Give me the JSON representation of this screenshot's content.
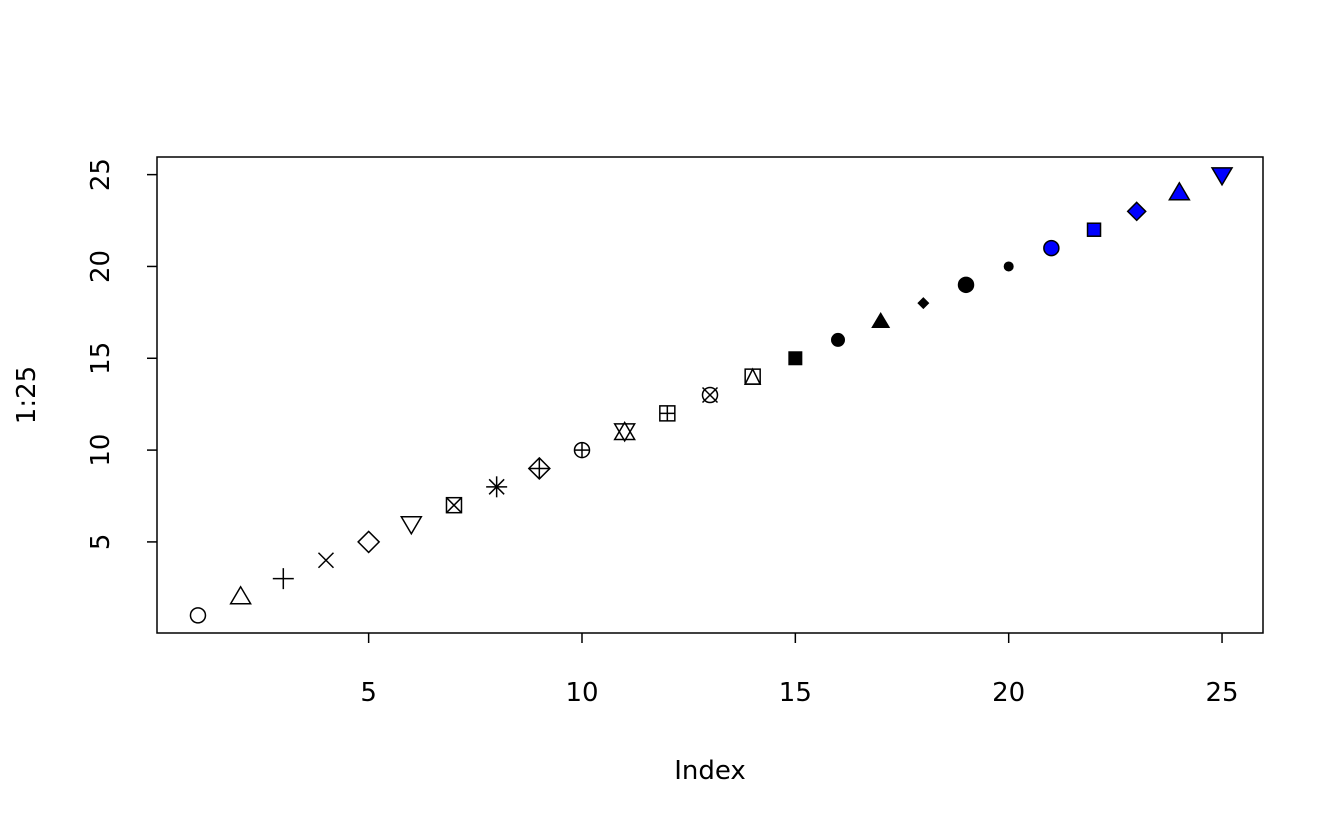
{
  "chart_data": {
    "type": "scatter",
    "title": "",
    "xlabel": "Index",
    "ylabel": "1:25",
    "xlim": [
      0.04,
      25.96
    ],
    "ylim": [
      0.04,
      25.96
    ],
    "x_ticks": [
      5,
      10,
      15,
      20,
      25
    ],
    "y_ticks": [
      5,
      10,
      15,
      20,
      25
    ],
    "grid": false,
    "x": [
      1,
      2,
      3,
      4,
      5,
      6,
      7,
      8,
      9,
      10,
      11,
      12,
      13,
      14,
      15,
      16,
      17,
      18,
      19,
      20,
      21,
      22,
      23,
      24,
      25
    ],
    "y": [
      1,
      2,
      3,
      4,
      5,
      6,
      7,
      8,
      9,
      10,
      11,
      12,
      13,
      14,
      15,
      16,
      17,
      18,
      19,
      20,
      21,
      22,
      23,
      24,
      25
    ],
    "point_symbols": [
      "open-circle",
      "open-triangle-up",
      "plus",
      "cross",
      "open-diamond",
      "open-triangle-down",
      "square-cross",
      "asterisk",
      "diamond-plus",
      "circle-plus",
      "star-of-david",
      "square-plus",
      "circle-cross",
      "square-triangle",
      "filled-square",
      "filled-circle",
      "filled-triangle",
      "filled-small-diamond",
      "filled-circle-bordered",
      "small-filled-circle",
      "bordered-circle",
      "bordered-square",
      "bordered-diamond",
      "bordered-triangle-up",
      "bordered-triangle-down"
    ],
    "stroke_color": "#000000",
    "fill_color_bordered": "#0000ff"
  }
}
